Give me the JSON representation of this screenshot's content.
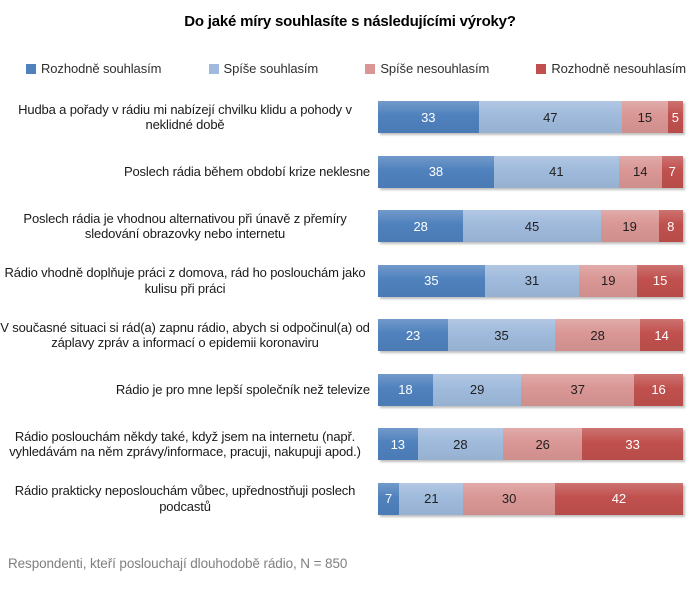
{
  "title": "Do jaké míry souhlasíte s následujícími výroky?",
  "footnote": "Respondenti, kteří poslouchají dlouhodobě rádio, N = 850",
  "chart_data": {
    "type": "bar",
    "subtype": "horizontal-stacked-100-percent",
    "title": "Do jaké míry souhlasíte s následujícími výroky?",
    "xlabel": "",
    "ylabel": "",
    "xlim": [
      0,
      100
    ],
    "grid": false,
    "legend_position": "top",
    "value_labels_shown": true,
    "legend": [
      {
        "label": "Rozhodně souhlasím",
        "color": "#4F81BD",
        "value_text_color": "#ffffff"
      },
      {
        "label": "Spíše souhlasím",
        "color": "#9FBADC",
        "value_text_color": "#1f1f1f"
      },
      {
        "label": "Spíše nesouhlasím",
        "color": "#D99694",
        "value_text_color": "#1f1f1f"
      },
      {
        "label": "Rozhodně nesouhlasím",
        "color": "#C0504D",
        "value_text_color": "#ffffff"
      }
    ],
    "categories": [
      "Hudba a pořady v rádiu mi nabízejí chvilku klidu a pohody v neklidné době",
      "Poslech rádia během období krize neklesne",
      "Poslech rádia je vhodnou alternativou při únavě z přemíry sledování obrazovky nebo internetu",
      "Rádio vhodně doplňuje práci z domova, rád ho poslouchám jako kulisu při práci",
      "V současné situaci si rád(a) zapnu rádio, abych si odpočinul(a) od záplavy zpráv a informací o epidemii koronaviru",
      "Rádio je pro mne lepší společník než televize",
      "Rádio poslouchám někdy také, když jsem na internetu (např. vyhledávám na něm zprávy/informace, pracuji, nakupuji apod.)",
      "Rádio prakticky neposlouchám vůbec, upřednostňuji poslech podcastů"
    ],
    "series": [
      {
        "name": "Rozhodně souhlasím",
        "values": [
          33,
          38,
          28,
          35,
          23,
          18,
          13,
          7
        ]
      },
      {
        "name": "Spíše souhlasím",
        "values": [
          47,
          41,
          45,
          31,
          35,
          29,
          28,
          21
        ]
      },
      {
        "name": "Spíše nesouhlasím",
        "values": [
          15,
          14,
          19,
          19,
          28,
          37,
          26,
          30
        ]
      },
      {
        "name": "Rozhodně nesouhlasím",
        "values": [
          5,
          7,
          8,
          15,
          14,
          16,
          33,
          42
        ]
      }
    ]
  }
}
